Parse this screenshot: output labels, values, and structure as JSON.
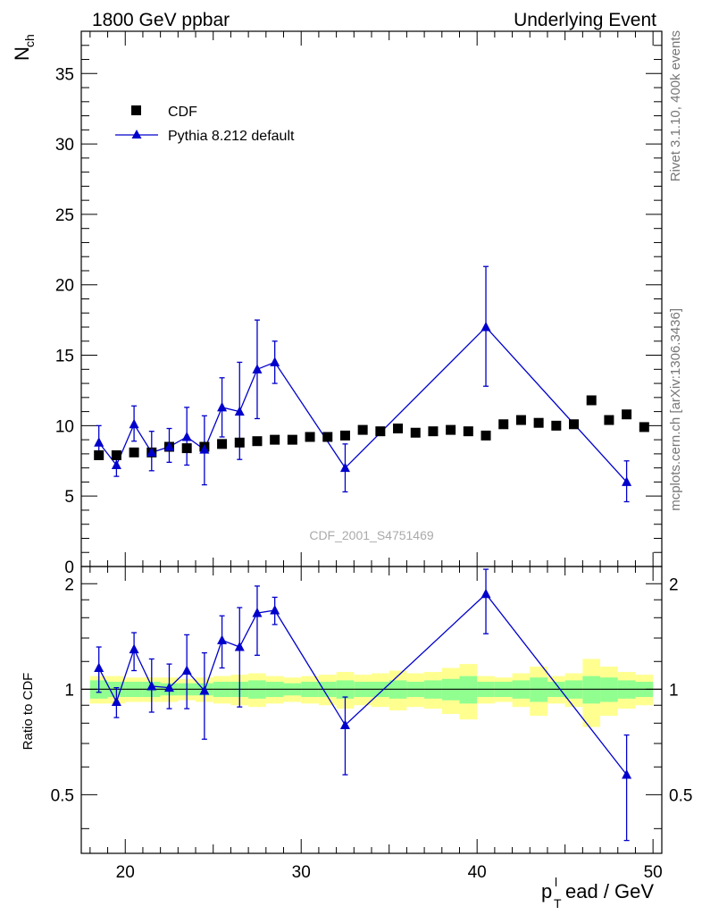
{
  "header": {
    "left_title": "1800 GeV ppbar",
    "right_title": "Underlying Event"
  },
  "side_labels": {
    "rivet": "Rivet 3.1.10,  400k events",
    "mcplots": "mcplots.cern.ch [arXiv:1306.3436]"
  },
  "analysis_id": "CDF_2001_S4751469",
  "colors": {
    "data": "#000000",
    "mc": "#0000cc",
    "band_stat": "#90ff90",
    "band_total": "#ffff90"
  },
  "chart_data": [
    {
      "type": "scatter",
      "title": "",
      "ylabel": "N",
      "ylabel_sub": "ch",
      "xlim": [
        17.5,
        50.5
      ],
      "ylim": [
        0,
        38
      ],
      "yticks": [
        "0",
        "5",
        "10",
        "15",
        "20",
        "25",
        "30",
        "35"
      ],
      "legend": {
        "position": "top-left",
        "data_label": "CDF",
        "mc_label": "Pythia 8.212 default"
      },
      "series": [
        {
          "name": "CDF",
          "x": [
            18.5,
            19.5,
            20.5,
            21.5,
            22.5,
            23.5,
            24.5,
            25.5,
            26.5,
            27.5,
            28.5,
            29.5,
            30.5,
            31.5,
            32.5,
            33.5,
            34.5,
            35.5,
            36.5,
            37.5,
            38.5,
            39.5,
            40.5,
            41.5,
            42.5,
            43.5,
            44.5,
            45.5,
            46.5,
            47.5,
            48.5,
            49.5
          ],
          "values": [
            7.9,
            7.9,
            8.1,
            8.1,
            8.5,
            8.4,
            8.5,
            8.7,
            8.8,
            8.9,
            9.0,
            9.0,
            9.2,
            9.2,
            9.3,
            9.7,
            9.6,
            9.8,
            9.5,
            9.6,
            9.7,
            9.6,
            9.3,
            10.1,
            10.4,
            10.2,
            10.0,
            10.1,
            11.8,
            10.4,
            10.8,
            9.9
          ]
        },
        {
          "name": "Pythia 8.212 default",
          "x": [
            18.5,
            19.5,
            20.5,
            21.5,
            22.5,
            23.5,
            24.5,
            25.5,
            26.5,
            27.5,
            28.5,
            32.5,
            40.5,
            48.5
          ],
          "values": [
            8.8,
            7.2,
            10.1,
            8.1,
            8.5,
            9.2,
            8.3,
            11.3,
            11.0,
            14.0,
            14.5,
            7.0,
            17.0,
            6.0
          ],
          "err_low": [
            7.7,
            6.4,
            8.9,
            6.8,
            7.4,
            7.2,
            5.8,
            9.2,
            7.6,
            10.5,
            13.0,
            5.3,
            12.8,
            4.6
          ],
          "err_high": [
            10.0,
            8.0,
            11.4,
            9.6,
            9.8,
            11.3,
            10.7,
            13.4,
            14.5,
            17.5,
            16.0,
            8.7,
            21.3,
            7.5
          ]
        }
      ]
    },
    {
      "type": "scatter",
      "title": "",
      "xlabel": "p",
      "xlabel_sub": "T",
      "xlabel_sup": "l",
      "xlabel_rest": "ead / GeV",
      "ylabel": "Ratio to CDF",
      "xlim": [
        17.5,
        50.5
      ],
      "ylim": [
        0.34,
        2.24
      ],
      "xticks": [
        "20",
        "30",
        "40",
        "50"
      ],
      "yticks": [
        "0.5",
        "1",
        "2"
      ],
      "bands": {
        "x": [
          18.5,
          19.5,
          20.5,
          21.5,
          22.5,
          23.5,
          24.5,
          25.5,
          26.5,
          27.5,
          28.5,
          29.5,
          30.5,
          31.5,
          32.5,
          33.5,
          34.5,
          35.5,
          36.5,
          37.5,
          38.5,
          39.5,
          40.5,
          41.5,
          42.5,
          43.5,
          44.5,
          45.5,
          46.5,
          47.5,
          48.5,
          49.5
        ],
        "stat_low": [
          0.94,
          0.95,
          0.95,
          0.95,
          0.96,
          0.96,
          0.96,
          0.95,
          0.95,
          0.94,
          0.95,
          0.96,
          0.95,
          0.95,
          0.94,
          0.95,
          0.95,
          0.94,
          0.95,
          0.94,
          0.93,
          0.91,
          0.95,
          0.95,
          0.94,
          0.92,
          0.95,
          0.94,
          0.91,
          0.92,
          0.94,
          0.95
        ],
        "stat_high": [
          1.06,
          1.05,
          1.05,
          1.05,
          1.04,
          1.04,
          1.04,
          1.05,
          1.05,
          1.06,
          1.05,
          1.04,
          1.05,
          1.05,
          1.06,
          1.05,
          1.05,
          1.06,
          1.05,
          1.06,
          1.07,
          1.09,
          1.05,
          1.05,
          1.06,
          1.08,
          1.05,
          1.06,
          1.09,
          1.08,
          1.06,
          1.05
        ],
        "tot_low": [
          0.91,
          0.91,
          0.92,
          0.92,
          0.92,
          0.93,
          0.92,
          0.91,
          0.9,
          0.89,
          0.91,
          0.92,
          0.91,
          0.9,
          0.88,
          0.9,
          0.89,
          0.87,
          0.89,
          0.88,
          0.85,
          0.82,
          0.91,
          0.92,
          0.89,
          0.84,
          0.91,
          0.89,
          0.78,
          0.84,
          0.88,
          0.9
        ],
        "tot_high": [
          1.09,
          1.09,
          1.08,
          1.08,
          1.08,
          1.07,
          1.08,
          1.09,
          1.1,
          1.11,
          1.09,
          1.08,
          1.09,
          1.1,
          1.12,
          1.1,
          1.11,
          1.13,
          1.11,
          1.12,
          1.15,
          1.18,
          1.09,
          1.08,
          1.11,
          1.16,
          1.09,
          1.11,
          1.22,
          1.16,
          1.12,
          1.1
        ]
      },
      "series": [
        {
          "name": "Pythia 8.212 default",
          "x": [
            18.5,
            19.5,
            20.5,
            21.5,
            22.5,
            23.5,
            24.5,
            25.5,
            26.5,
            27.5,
            28.5,
            32.5,
            40.5,
            48.5
          ],
          "values": [
            1.15,
            0.92,
            1.3,
            1.02,
            1.01,
            1.13,
            0.99,
            1.38,
            1.32,
            1.65,
            1.68,
            0.79,
            1.87,
            0.57
          ],
          "err_low": [
            0.98,
            0.83,
            1.13,
            0.86,
            0.88,
            0.88,
            0.72,
            1.15,
            0.89,
            1.25,
            1.53,
            0.57,
            1.44,
            0.37
          ],
          "err_high": [
            1.32,
            1.01,
            1.45,
            1.22,
            1.18,
            1.43,
            1.27,
            1.62,
            1.71,
            1.97,
            1.83,
            0.95,
            2.2,
            0.74
          ]
        }
      ]
    }
  ]
}
